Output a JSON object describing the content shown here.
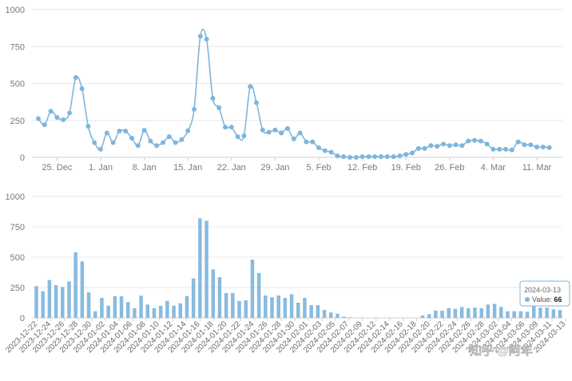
{
  "chart_data": [
    {
      "type": "line",
      "title": "",
      "xlabel": "",
      "ylabel": "",
      "ylim": [
        0,
        1000
      ],
      "y_ticks": [
        "0",
        "250",
        "500",
        "750",
        "1000"
      ],
      "x_ticks": [
        "25. Dec",
        "1. Jan",
        "8. Jan",
        "15. Jan",
        "22. Jan",
        "29. Jan",
        "5. Feb",
        "12. Feb",
        "19. Feb",
        "26. Feb",
        "4. Mar",
        "11. Mar"
      ],
      "x_start": "2023-12-22",
      "grid": true,
      "series": [
        {
          "values": [
            262,
            220,
            312,
            270,
            255,
            300,
            540,
            465,
            210,
            100,
            55,
            165,
            100,
            178,
            178,
            130,
            80,
            183,
            110,
            80,
            100,
            140,
            100,
            120,
            180,
            325,
            820,
            800,
            400,
            335,
            205,
            205,
            140,
            145,
            480,
            370,
            185,
            170,
            185,
            165,
            195,
            125,
            165,
            105,
            105,
            65,
            45,
            35,
            10,
            5,
            0,
            0,
            5,
            5,
            5,
            5,
            5,
            5,
            10,
            20,
            30,
            60,
            60,
            80,
            75,
            90,
            80,
            85,
            80,
            110,
            115,
            110,
            90,
            55,
            55,
            55,
            50,
            105,
            85,
            85,
            70,
            70,
            66
          ]
        }
      ]
    },
    {
      "type": "bar",
      "title": "",
      "xlabel": "",
      "ylabel": "",
      "ylim": [
        0,
        1000
      ],
      "y_ticks": [
        "0",
        "250",
        "500",
        "750",
        "1000"
      ],
      "x_ticks": [
        "2023-12-22",
        "2023-12-24",
        "2023-12-26",
        "2023-12-28",
        "2023-12-30",
        "2024-01-02",
        "2024-01-04",
        "2024-01-06",
        "2024-01-08",
        "2024-01-10",
        "2024-01-12",
        "2024-01-14",
        "2024-01-16",
        "2024-01-18",
        "2024-01-20",
        "2024-01-22",
        "2024-01-24",
        "2024-01-26",
        "2024-01-28",
        "2024-01-30",
        "2024-02-01",
        "2024-02-03",
        "2024-02-05",
        "2024-02-07",
        "2024-02-09",
        "2024-02-12",
        "2024-02-14",
        "2024-02-16",
        "2024-02-18",
        "2024-02-20",
        "2024-02-22",
        "2024-02-24",
        "2024-02-26",
        "2024-02-28",
        "2024-03-02",
        "2024-03-04",
        "2024-03-06",
        "2024-03-09",
        "2024-03-11",
        "2024-03-13"
      ],
      "grid": true,
      "series": [
        {
          "values": [
            262,
            220,
            312,
            270,
            255,
            300,
            540,
            465,
            210,
            55,
            165,
            100,
            178,
            178,
            130,
            80,
            183,
            110,
            80,
            100,
            140,
            100,
            120,
            180,
            325,
            820,
            800,
            400,
            335,
            205,
            205,
            140,
            145,
            480,
            370,
            185,
            170,
            185,
            165,
            195,
            125,
            165,
            105,
            105,
            65,
            45,
            35,
            10,
            5,
            0,
            0,
            0,
            0,
            0,
            0,
            0,
            0,
            0,
            0,
            20,
            30,
            60,
            60,
            80,
            75,
            90,
            80,
            85,
            80,
            110,
            115,
            90,
            55,
            55,
            55,
            50,
            105,
            85,
            85,
            70,
            66
          ]
        }
      ],
      "tooltip": {
        "date": "2024-03-13",
        "label": "Value: ",
        "value": "66"
      }
    }
  ],
  "watermark": "知乎 @阿年",
  "colors": {
    "series": "#7eb6dc",
    "bar": "#88bbdf",
    "grid": "#e8e8e8"
  }
}
